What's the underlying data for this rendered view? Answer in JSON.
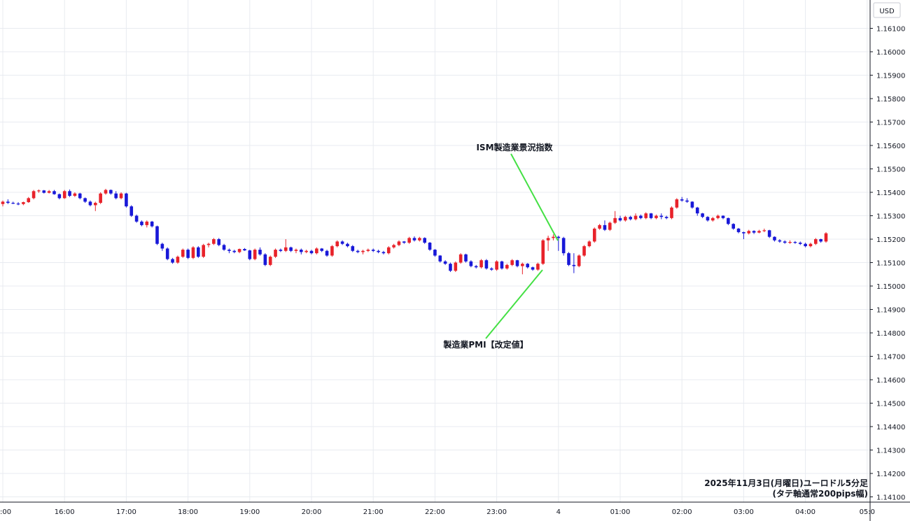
{
  "chart_data": {
    "type": "candlestick",
    "currency_label": "USD",
    "y_ticks": [
      "1.16100",
      "1.16000",
      "1.15900",
      "1.15800",
      "1.15700",
      "1.15600",
      "1.15500",
      "1.15400",
      "1.15300",
      "1.15200",
      "1.15100",
      "1.15000",
      "1.14900",
      "1.14800",
      "1.14700",
      "1.14600",
      "1.14500",
      "1.14400",
      "1.14300",
      "1.14200",
      "1.14100"
    ],
    "ylim": [
      1.1405,
      1.1618
    ],
    "x_ticks": [
      {
        "label": ":00",
        "t": 0
      },
      {
        "label": "16:00",
        "t": 12
      },
      {
        "label": "17:00",
        "t": 24
      },
      {
        "label": "18:00",
        "t": 36
      },
      {
        "label": "19:00",
        "t": 48
      },
      {
        "label": "20:00",
        "t": 60
      },
      {
        "label": "21:00",
        "t": 72
      },
      {
        "label": "22:00",
        "t": 84
      },
      {
        "label": "23:00",
        "t": 96
      },
      {
        "label": "4",
        "t": 108
      },
      {
        "label": "01:00",
        "t": 120
      },
      {
        "label": "02:00",
        "t": 132
      },
      {
        "label": "03:00",
        "t": 144
      },
      {
        "label": "04:00",
        "t": 156
      },
      {
        "label": "05:0",
        "t": 168
      }
    ],
    "bull_color": "#e8222a",
    "bear_color": "#1818d8",
    "annotations": [
      {
        "text": "ISM製造業景況指数",
        "line_color": "#44e044"
      },
      {
        "text": "製造業PMI【改定値】",
        "line_color": "#44e044"
      }
    ],
    "caption_line1": "2025年11月3日(月曜日)ユーロドル5分足",
    "caption_line2": "(タテ軸通常200pips幅)",
    "candles": [
      [
        1.1535,
        1.15365,
        1.1534,
        1.1536
      ],
      [
        1.1536,
        1.1537,
        1.1535,
        1.15355
      ],
      [
        1.15355,
        1.1536,
        1.1535,
        1.15352
      ],
      [
        1.15352,
        1.15358,
        1.15345,
        1.1535
      ],
      [
        1.1535,
        1.1536,
        1.15345,
        1.15358
      ],
      [
        1.15358,
        1.1538,
        1.15355,
        1.15375
      ],
      [
        1.15375,
        1.1541,
        1.1537,
        1.15405
      ],
      [
        1.15405,
        1.15412,
        1.15398,
        1.15408
      ],
      [
        1.15408,
        1.1541,
        1.15395,
        1.15398
      ],
      [
        1.15398,
        1.1541,
        1.15395,
        1.15405
      ],
      [
        1.15405,
        1.1541,
        1.1539,
        1.15392
      ],
      [
        1.15392,
        1.15395,
        1.1537,
        1.15375
      ],
      [
        1.15375,
        1.1541,
        1.15372,
        1.15405
      ],
      [
        1.15405,
        1.15412,
        1.1538,
        1.15385
      ],
      [
        1.15385,
        1.154,
        1.1538,
        1.15395
      ],
      [
        1.15395,
        1.15398,
        1.1537,
        1.15375
      ],
      [
        1.15375,
        1.15378,
        1.15355,
        1.1536
      ],
      [
        1.1536,
        1.15365,
        1.1534,
        1.15345
      ],
      [
        1.15345,
        1.1536,
        1.1532,
        1.15355
      ],
      [
        1.15355,
        1.154,
        1.1535,
        1.15395
      ],
      [
        1.15395,
        1.15415,
        1.1539,
        1.1541
      ],
      [
        1.1541,
        1.15412,
        1.1539,
        1.15395
      ],
      [
        1.15395,
        1.15405,
        1.1537,
        1.15375
      ],
      [
        1.15375,
        1.154,
        1.1537,
        1.15395
      ],
      [
        1.15395,
        1.15398,
        1.15335,
        1.1534
      ],
      [
        1.1534,
        1.15345,
        1.15295,
        1.153
      ],
      [
        1.153,
        1.15305,
        1.1527,
        1.15275
      ],
      [
        1.15275,
        1.1528,
        1.15255,
        1.1526
      ],
      [
        1.1526,
        1.1528,
        1.1525,
        1.15275
      ],
      [
        1.15275,
        1.15278,
        1.1525,
        1.15255
      ],
      [
        1.15255,
        1.15258,
        1.15175,
        1.1518
      ],
      [
        1.1518,
        1.15185,
        1.1515,
        1.1516
      ],
      [
        1.1516,
        1.15165,
        1.1511,
        1.15115
      ],
      [
        1.15115,
        1.1512,
        1.15095,
        1.151
      ],
      [
        1.151,
        1.1513,
        1.15095,
        1.15125
      ],
      [
        1.15125,
        1.1516,
        1.1512,
        1.15155
      ],
      [
        1.15155,
        1.1516,
        1.15115,
        1.1512
      ],
      [
        1.1512,
        1.1517,
        1.15115,
        1.15165
      ],
      [
        1.15165,
        1.1517,
        1.1512,
        1.15125
      ],
      [
        1.15125,
        1.1518,
        1.1512,
        1.15175
      ],
      [
        1.15175,
        1.15185,
        1.15165,
        1.1518
      ],
      [
        1.1518,
        1.15205,
        1.15175,
        1.152
      ],
      [
        1.152,
        1.15205,
        1.1517,
        1.15175
      ],
      [
        1.15175,
        1.1518,
        1.1515,
        1.15155
      ],
      [
        1.15155,
        1.1516,
        1.1514,
        1.1515
      ],
      [
        1.1515,
        1.15155,
        1.1514,
        1.15145
      ],
      [
        1.15145,
        1.1516,
        1.1514,
        1.15158
      ],
      [
        1.15158,
        1.15162,
        1.1515,
        1.15152
      ],
      [
        1.15152,
        1.15155,
        1.1511,
        1.15115
      ],
      [
        1.15115,
        1.1516,
        1.1511,
        1.15155
      ],
      [
        1.15155,
        1.15165,
        1.1513,
        1.15135
      ],
      [
        1.15135,
        1.1514,
        1.15085,
        1.1509
      ],
      [
        1.1509,
        1.1513,
        1.15085,
        1.15125
      ],
      [
        1.15125,
        1.1516,
        1.1512,
        1.15155
      ],
      [
        1.15155,
        1.1516,
        1.15145,
        1.1515
      ],
      [
        1.1515,
        1.152,
        1.15145,
        1.15165
      ],
      [
        1.15165,
        1.15168,
        1.15145,
        1.1515
      ],
      [
        1.1515,
        1.1516,
        1.1514,
        1.15155
      ],
      [
        1.15155,
        1.1516,
        1.15135,
        1.15145
      ],
      [
        1.15145,
        1.15155,
        1.1514,
        1.1515
      ],
      [
        1.1515,
        1.15155,
        1.15135,
        1.1514
      ],
      [
        1.1514,
        1.15165,
        1.15135,
        1.1516
      ],
      [
        1.1516,
        1.15162,
        1.15145,
        1.1515
      ],
      [
        1.1515,
        1.15155,
        1.15125,
        1.1513
      ],
      [
        1.1513,
        1.15175,
        1.15125,
        1.1517
      ],
      [
        1.1517,
        1.15195,
        1.15165,
        1.1519
      ],
      [
        1.1519,
        1.15195,
        1.15175,
        1.1518
      ],
      [
        1.1518,
        1.15185,
        1.15165,
        1.1517
      ],
      [
        1.1517,
        1.15175,
        1.15145,
        1.1515
      ],
      [
        1.1515,
        1.15155,
        1.1514,
        1.15145
      ],
      [
        1.15145,
        1.15155,
        1.15135,
        1.1515
      ],
      [
        1.1515,
        1.1516,
        1.15145,
        1.15155
      ],
      [
        1.15155,
        1.1516,
        1.15145,
        1.1515
      ],
      [
        1.1515,
        1.15155,
        1.1514,
        1.15145
      ],
      [
        1.15145,
        1.1515,
        1.15135,
        1.1514
      ],
      [
        1.1514,
        1.1517,
        1.15135,
        1.15165
      ],
      [
        1.15165,
        1.1518,
        1.1516,
        1.15175
      ],
      [
        1.15175,
        1.15195,
        1.1517,
        1.1519
      ],
      [
        1.1519,
        1.15192,
        1.1518,
        1.15185
      ],
      [
        1.15185,
        1.1521,
        1.1518,
        1.15205
      ],
      [
        1.15205,
        1.15212,
        1.1519,
        1.15195
      ],
      [
        1.15195,
        1.1521,
        1.1519,
        1.15205
      ],
      [
        1.15205,
        1.15208,
        1.1518,
        1.15185
      ],
      [
        1.15185,
        1.15188,
        1.1515,
        1.15155
      ],
      [
        1.15155,
        1.15158,
        1.15125,
        1.1513
      ],
      [
        1.1513,
        1.15132,
        1.151,
        1.15105
      ],
      [
        1.15105,
        1.1511,
        1.1509,
        1.15095
      ],
      [
        1.15095,
        1.151,
        1.1506,
        1.15065
      ],
      [
        1.15065,
        1.15105,
        1.1506,
        1.151
      ],
      [
        1.151,
        1.1514,
        1.15095,
        1.15135
      ],
      [
        1.15135,
        1.15138,
        1.151,
        1.15105
      ],
      [
        1.15105,
        1.1511,
        1.1508,
        1.15085
      ],
      [
        1.15085,
        1.1509,
        1.15075,
        1.1508
      ],
      [
        1.1508,
        1.15115,
        1.15075,
        1.1511
      ],
      [
        1.1511,
        1.15115,
        1.1507,
        1.15075
      ],
      [
        1.15075,
        1.1508,
        1.15065,
        1.1507
      ],
      [
        1.1507,
        1.1511,
        1.15065,
        1.15105
      ],
      [
        1.15105,
        1.15108,
        1.1507,
        1.15075
      ],
      [
        1.15075,
        1.15095,
        1.1507,
        1.1509
      ],
      [
        1.1509,
        1.15115,
        1.15085,
        1.1511
      ],
      [
        1.1511,
        1.15112,
        1.1508,
        1.15085
      ],
      [
        1.15085,
        1.151,
        1.1505,
        1.15095
      ],
      [
        1.15095,
        1.15098,
        1.15075,
        1.1508
      ],
      [
        1.1508,
        1.15083,
        1.15065,
        1.1507
      ],
      [
        1.1507,
        1.151,
        1.15065,
        1.15095
      ],
      [
        1.15095,
        1.152,
        1.1509,
        1.15195
      ],
      [
        1.15195,
        1.15215,
        1.1515,
        1.15205
      ],
      [
        1.15205,
        1.1522,
        1.15195,
        1.1521
      ],
      [
        1.1521,
        1.15215,
        1.1515,
        1.15205
      ],
      [
        1.15205,
        1.1521,
        1.1513,
        1.1514
      ],
      [
        1.1514,
        1.15145,
        1.15085,
        1.1509
      ],
      [
        1.1509,
        1.1514,
        1.15055,
        1.15085
      ],
      [
        1.15085,
        1.15135,
        1.1508,
        1.1513
      ],
      [
        1.1513,
        1.15175,
        1.15125,
        1.1517
      ],
      [
        1.1517,
        1.15195,
        1.15165,
        1.1519
      ],
      [
        1.1519,
        1.1525,
        1.15185,
        1.15245
      ],
      [
        1.15245,
        1.15265,
        1.1524,
        1.1526
      ],
      [
        1.1526,
        1.1528,
        1.15235,
        1.1524
      ],
      [
        1.1524,
        1.15275,
        1.15235,
        1.1527
      ],
      [
        1.1527,
        1.1532,
        1.15265,
        1.1529
      ],
      [
        1.1529,
        1.153,
        1.15275,
        1.1528
      ],
      [
        1.1528,
        1.153,
        1.15275,
        1.15295
      ],
      [
        1.15295,
        1.153,
        1.1528,
        1.15285
      ],
      [
        1.15285,
        1.1531,
        1.1528,
        1.153
      ],
      [
        1.153,
        1.15305,
        1.15285,
        1.1529
      ],
      [
        1.1529,
        1.15315,
        1.15285,
        1.1531
      ],
      [
        1.1531,
        1.15312,
        1.15285,
        1.1529
      ],
      [
        1.1529,
        1.15305,
        1.15285,
        1.153
      ],
      [
        1.153,
        1.1531,
        1.15285,
        1.15295
      ],
      [
        1.15295,
        1.153,
        1.15285,
        1.1529
      ],
      [
        1.1529,
        1.1534,
        1.15285,
        1.15335
      ],
      [
        1.15335,
        1.15375,
        1.1533,
        1.1537
      ],
      [
        1.1537,
        1.1538,
        1.1536,
        1.15365
      ],
      [
        1.15365,
        1.15375,
        1.15355,
        1.1536
      ],
      [
        1.1536,
        1.15362,
        1.1533,
        1.15335
      ],
      [
        1.15335,
        1.15338,
        1.153,
        1.1531
      ],
      [
        1.1531,
        1.15312,
        1.1529,
        1.15295
      ],
      [
        1.15295,
        1.15298,
        1.15275,
        1.1528
      ],
      [
        1.1528,
        1.15295,
        1.15275,
        1.1529
      ],
      [
        1.1529,
        1.15305,
        1.15285,
        1.153
      ],
      [
        1.153,
        1.15302,
        1.15285,
        1.1529
      ],
      [
        1.1529,
        1.15292,
        1.1526,
        1.15265
      ],
      [
        1.15265,
        1.15268,
        1.1524,
        1.15245
      ],
      [
        1.15245,
        1.15248,
        1.15225,
        1.1523
      ],
      [
        1.1523,
        1.15232,
        1.152,
        1.15225
      ],
      [
        1.15225,
        1.1524,
        1.1522,
        1.15235
      ],
      [
        1.15235,
        1.15238,
        1.15222,
        1.15228
      ],
      [
        1.15228,
        1.1524,
        1.15225,
        1.15235
      ],
      [
        1.15235,
        1.15245,
        1.1523,
        1.15238
      ],
      [
        1.15238,
        1.1524,
        1.15205,
        1.1521
      ],
      [
        1.1521,
        1.15212,
        1.1519,
        1.15195
      ],
      [
        1.15195,
        1.152,
        1.15185,
        1.1519
      ],
      [
        1.1519,
        1.15195,
        1.1518,
        1.15185
      ],
      [
        1.15185,
        1.15195,
        1.1518,
        1.15188
      ],
      [
        1.15188,
        1.15192,
        1.1518,
        1.15185
      ],
      [
        1.15185,
        1.1519,
        1.15175,
        1.1518
      ],
      [
        1.1518,
        1.15185,
        1.15165,
        1.1517
      ],
      [
        1.1517,
        1.15185,
        1.15165,
        1.1518
      ],
      [
        1.1518,
        1.15205,
        1.15175,
        1.152
      ],
      [
        1.152,
        1.15202,
        1.15185,
        1.1519
      ],
      [
        1.1519,
        1.1523,
        1.15185,
        1.15225
      ]
    ]
  }
}
